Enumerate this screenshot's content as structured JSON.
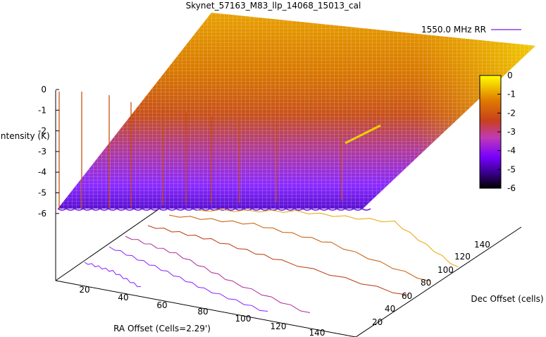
{
  "chart_data": {
    "type": "surface-3d",
    "title": "Skynet_57163_M83_llp_14068_15013_cal",
    "legend": {
      "label": "1550.0 MHz RR",
      "line_color": "#7b1fd8",
      "placement": "top-right"
    },
    "zlabel": "Intensity (K)",
    "xlabel": "RA Offset (Cells=2.29')",
    "ylabel": "Dec Offset (cells)",
    "z_ticks": [
      "0",
      "-1",
      "-2",
      "-3",
      "-4",
      "-5",
      "-6"
    ],
    "x_ticks": [
      "20",
      "40",
      "60",
      "80",
      "100",
      "120",
      "140"
    ],
    "y_ticks": [
      "20",
      "40",
      "60",
      "80",
      "100",
      "120",
      "140"
    ],
    "zlim": [
      -6,
      0
    ],
    "xlim": [
      0,
      140
    ],
    "ylim": [
      0,
      150
    ],
    "colorbar": {
      "ticks": [
        "0",
        "-1",
        "-2",
        "-3",
        "-4",
        "-5",
        "-6"
      ],
      "range": [
        -6,
        0
      ],
      "colors": [
        "#000000",
        "#5a00b5",
        "#8a1fff",
        "#c03ab4",
        "#c8401c",
        "#e07b00",
        "#f5d800",
        "#ffff00"
      ]
    },
    "contours": [
      {
        "level": -5.5,
        "color": "#8a1fff"
      },
      {
        "level": -5.0,
        "color": "#8a1fff"
      },
      {
        "level": -4.0,
        "color": "#b02a9a"
      },
      {
        "level": -3.0,
        "color": "#b8380c"
      },
      {
        "level": -2.0,
        "color": "#c85800"
      },
      {
        "level": -1.0,
        "color": "#e8a500"
      }
    ]
  }
}
